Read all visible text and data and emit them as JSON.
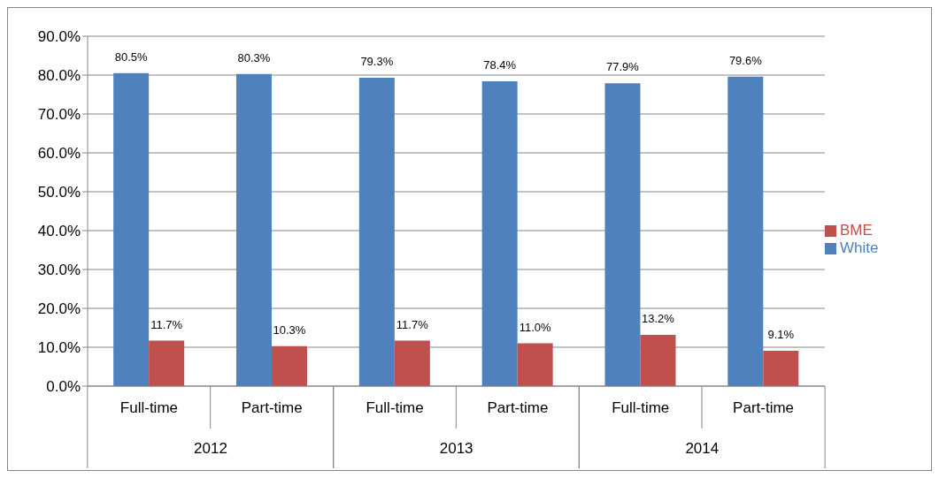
{
  "chart_data": {
    "type": "bar",
    "categories": [
      "Full-time",
      "Part-time",
      "Full-time",
      "Part-time",
      "Full-time",
      "Part-time"
    ],
    "series": [
      {
        "name": "White",
        "color": "#4f81bd",
        "values": [
          80.5,
          80.3,
          79.3,
          78.4,
          77.9,
          79.6
        ],
        "value_labels": [
          "80.5%",
          "80.3%",
          "79.3%",
          "78.4%",
          "77.9%",
          "79.6%"
        ]
      },
      {
        "name": "BME",
        "color": "#c0504d",
        "values": [
          11.7,
          10.3,
          11.7,
          11.0,
          13.2,
          9.1
        ],
        "value_labels": [
          "11.7%",
          "10.3%",
          "11.7%",
          "11.0%",
          "13.2%",
          "9.1%"
        ]
      }
    ],
    "annotations": [
      "2012",
      "2013",
      "2014"
    ],
    "ylim": [
      0,
      90
    ],
    "yticks": [
      {
        "value": 0,
        "label": "0.0%"
      },
      {
        "value": 10,
        "label": "10.0%"
      },
      {
        "value": 20,
        "label": "20.0%"
      },
      {
        "value": 30,
        "label": "30.0%"
      },
      {
        "value": 40,
        "label": "40.0%"
      },
      {
        "value": 50,
        "label": "50.0%"
      },
      {
        "value": 60,
        "label": "60.0%"
      },
      {
        "value": 70,
        "label": "70.0%"
      },
      {
        "value": 80,
        "label": "80.0%"
      },
      {
        "value": 90,
        "label": "90.0%"
      }
    ],
    "grid": "y",
    "legend": "right"
  }
}
